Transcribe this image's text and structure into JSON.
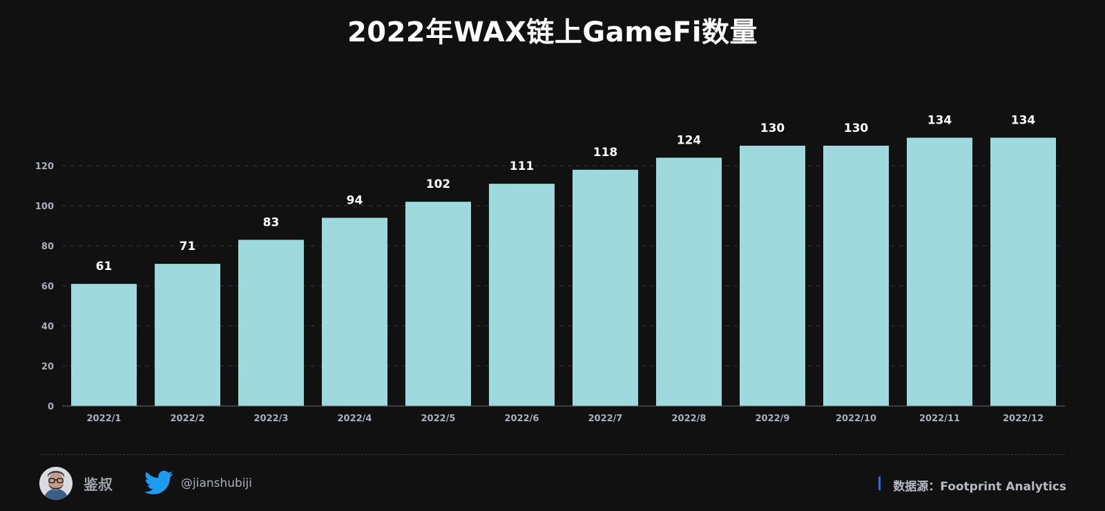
{
  "chart_data": {
    "type": "bar",
    "title": "2022年WAX链上GameFi数量",
    "categories": [
      "2022/1",
      "2022/2",
      "2022/3",
      "2022/4",
      "2022/5",
      "2022/6",
      "2022/7",
      "2022/8",
      "2022/9",
      "2022/10",
      "2022/11",
      "2022/12"
    ],
    "values": [
      61,
      71,
      83,
      94,
      102,
      111,
      118,
      124,
      130,
      130,
      134,
      134
    ],
    "ylim": [
      0,
      140
    ],
    "yticks": [
      0,
      20,
      40,
      60,
      80,
      100,
      120
    ],
    "grid": true,
    "data_labels": true,
    "xlabel": "",
    "ylabel": "",
    "bar_color": "#9ed9dd"
  },
  "footer": {
    "author": "鉴叔",
    "twitter_handle": "@jianshubiji",
    "source": "数据源：Footprint  Analytics",
    "twitter_color": "#1d9bf0",
    "source_accent": "#2f6bf0",
    "avatar_icon": "avatar-portrait-icon",
    "social_icon": "twitter-bird-icon"
  }
}
